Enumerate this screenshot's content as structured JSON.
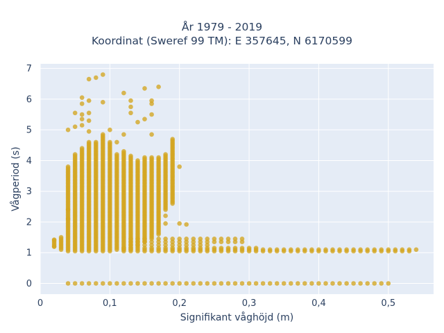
{
  "chart_data": {
    "type": "scatter",
    "title_line1": "År 1979 - 2019",
    "title_line2": "Koordinat (Sweref 99 TM): E 357645, N 6170599",
    "xlabel": "Signifikant våghöjd (m)",
    "ylabel": "Vågperiod (s)",
    "xlim": [
      0,
      0.565
    ],
    "ylim": [
      -0.35,
      7.15
    ],
    "x_ticks": [
      {
        "value": 0,
        "label": "0"
      },
      {
        "value": 0.1,
        "label": "0,1"
      },
      {
        "value": 0.2,
        "label": "0,2"
      },
      {
        "value": 0.3,
        "label": "0,3"
      },
      {
        "value": 0.4,
        "label": "0,4"
      },
      {
        "value": 0.5,
        "label": "0,5"
      }
    ],
    "y_ticks": [
      {
        "value": 0,
        "label": "0"
      },
      {
        "value": 1,
        "label": "1"
      },
      {
        "value": 2,
        "label": "2"
      },
      {
        "value": 3,
        "label": "3"
      },
      {
        "value": 4,
        "label": "4"
      },
      {
        "value": 5,
        "label": "5"
      },
      {
        "value": 6,
        "label": "6"
      },
      {
        "value": 7,
        "label": "7"
      }
    ],
    "grid": true,
    "colors": {
      "marker": "#d4a520",
      "plot_bg": "#e5ecf6",
      "grid": "#ffffff"
    },
    "columns": [
      {
        "x": 0.02,
        "ymin": 1.2,
        "ymax": 1.42
      },
      {
        "x": 0.03,
        "ymin": 1.1,
        "ymax": 1.5
      },
      {
        "x": 0.04,
        "ymin": 1.05,
        "ymax": 3.8
      },
      {
        "x": 0.05,
        "ymin": 1.05,
        "ymax": 4.2
      },
      {
        "x": 0.06,
        "ymin": 1.05,
        "ymax": 4.4
      },
      {
        "x": 0.07,
        "ymin": 1.05,
        "ymax": 4.6
      },
      {
        "x": 0.08,
        "ymin": 1.05,
        "ymax": 4.6
      },
      {
        "x": 0.09,
        "ymin": 1.05,
        "ymax": 4.85
      },
      {
        "x": 0.1,
        "ymin": 1.05,
        "ymax": 4.6
      },
      {
        "x": 0.11,
        "ymin": 1.1,
        "ymax": 4.2
      },
      {
        "x": 0.12,
        "ymin": 1.1,
        "ymax": 4.3
      },
      {
        "x": 0.13,
        "ymin": 1.1,
        "ymax": 4.15
      },
      {
        "x": 0.14,
        "ymin": 1.2,
        "ymax": 4.0
      },
      {
        "x": 0.15,
        "ymin": 1.35,
        "ymax": 4.1
      },
      {
        "x": 0.16,
        "ymin": 1.5,
        "ymax": 4.1
      },
      {
        "x": 0.17,
        "ymin": 1.6,
        "ymax": 4.1
      },
      {
        "x": 0.18,
        "ymin": 2.4,
        "ymax": 4.2
      },
      {
        "x": 0.19,
        "ymin": 2.6,
        "ymax": 4.7
      }
    ],
    "bands": [
      {
        "y": 1.45,
        "xmin": 0.13,
        "xmax": 0.29
      },
      {
        "y": 1.35,
        "xmin": 0.13,
        "xmax": 0.29
      },
      {
        "y": 1.25,
        "xmin": 0.13,
        "xmax": 0.24
      },
      {
        "y": 1.15,
        "xmin": 0.12,
        "xmax": 0.31
      },
      {
        "y": 1.1,
        "xmin": 0.12,
        "xmax": 0.54
      },
      {
        "y": 1.05,
        "xmin": 0.12,
        "xmax": 0.53
      },
      {
        "y": 0,
        "xmin": 0.04,
        "xmax": 0.5
      }
    ],
    "outliers": [
      [
        0.07,
        6.65
      ],
      [
        0.08,
        6.7
      ],
      [
        0.09,
        6.8
      ],
      [
        0.06,
        6.05
      ],
      [
        0.06,
        5.85
      ],
      [
        0.07,
        5.95
      ],
      [
        0.05,
        5.55
      ],
      [
        0.06,
        5.5
      ],
      [
        0.07,
        5.55
      ],
      [
        0.06,
        5.35
      ],
      [
        0.07,
        5.3
      ],
      [
        0.06,
        5.15
      ],
      [
        0.07,
        4.95
      ],
      [
        0.04,
        5.0
      ],
      [
        0.05,
        5.1
      ],
      [
        0.09,
        5.9
      ],
      [
        0.12,
        6.2
      ],
      [
        0.13,
        5.95
      ],
      [
        0.13,
        5.75
      ],
      [
        0.13,
        5.55
      ],
      [
        0.14,
        5.25
      ],
      [
        0.15,
        5.35
      ],
      [
        0.15,
        6.35
      ],
      [
        0.16,
        5.95
      ],
      [
        0.16,
        5.85
      ],
      [
        0.16,
        5.5
      ],
      [
        0.17,
        6.4
      ],
      [
        0.16,
        4.85
      ],
      [
        0.12,
        4.85
      ],
      [
        0.11,
        4.6
      ],
      [
        0.1,
        5.0
      ],
      [
        0.2,
        3.8
      ],
      [
        0.2,
        1.95
      ],
      [
        0.21,
        1.92
      ],
      [
        0.18,
        2.2
      ],
      [
        0.18,
        1.95
      ],
      [
        0.02,
        1.42
      ],
      [
        0.02,
        1.2
      ],
      [
        0.04,
        2.1
      ],
      [
        0.04,
        2.4
      ]
    ]
  }
}
